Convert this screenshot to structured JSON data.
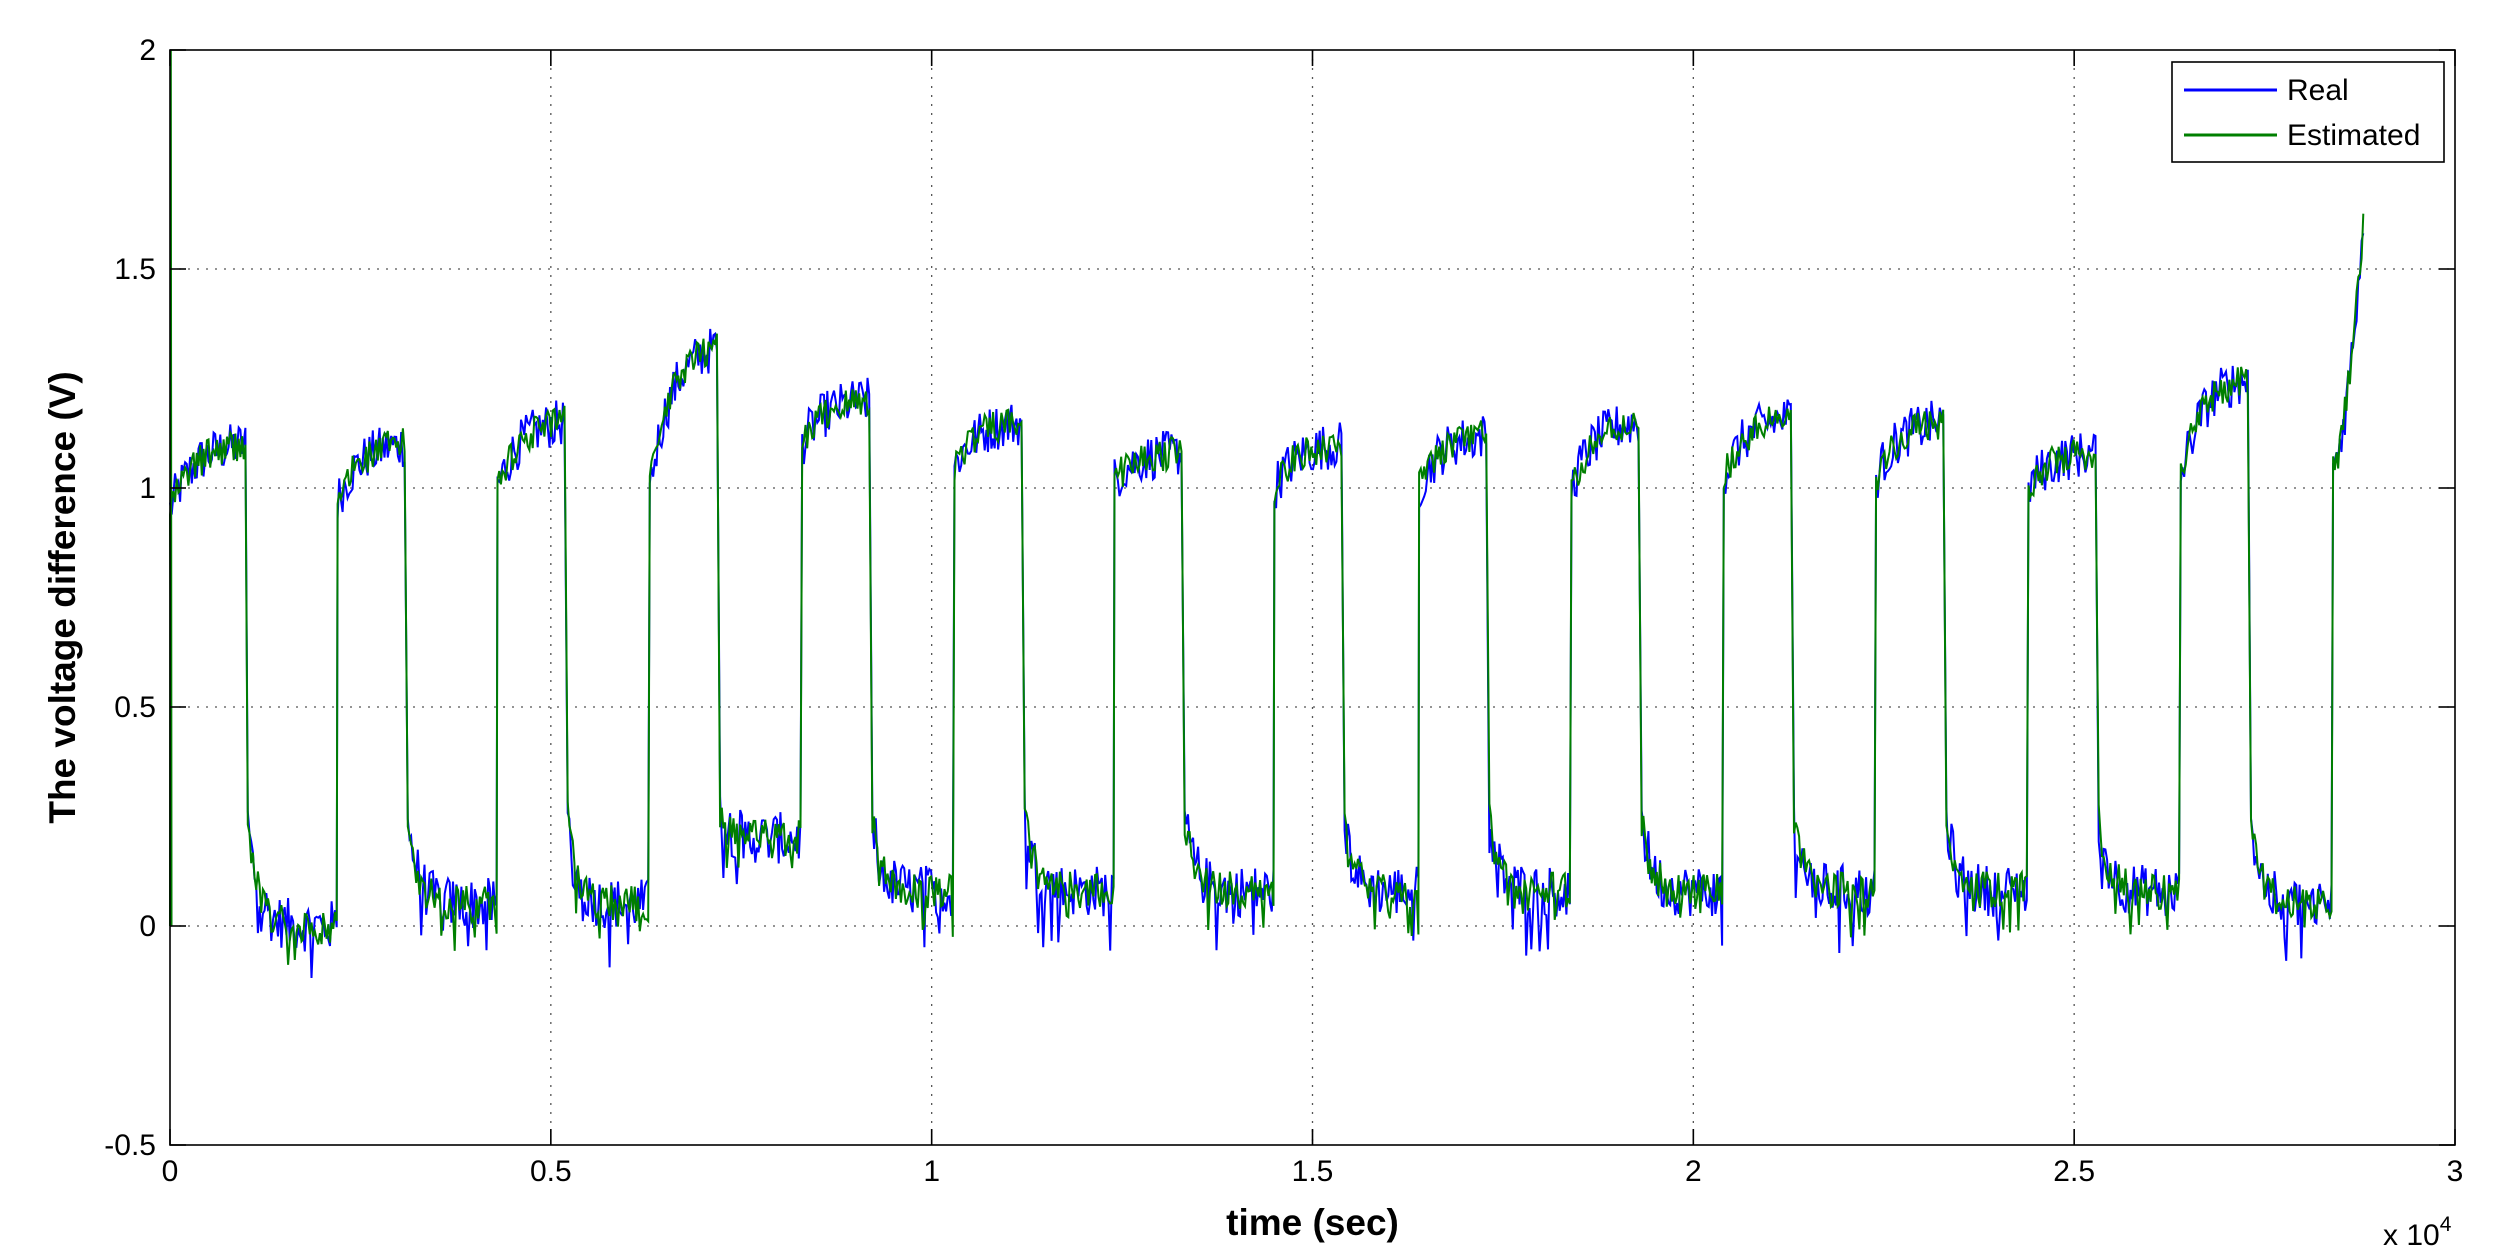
{
  "chart_data": {
    "type": "line",
    "title": "",
    "xlabel": "time (sec)",
    "ylabel": "The voltage difference (V)",
    "x_multiplier_label": "x 10",
    "x_multiplier_exponent": "4",
    "xlim": [
      0,
      30000
    ],
    "ylim": [
      -0.5,
      2
    ],
    "xticks": [
      0,
      5000,
      10000,
      15000,
      20000,
      25000,
      30000
    ],
    "xtick_labels": [
      "0",
      "0.5",
      "1",
      "1.5",
      "2",
      "2.5",
      "3"
    ],
    "yticks": [
      -0.5,
      0,
      0.5,
      1,
      1.5,
      2
    ],
    "ytick_labels": [
      "-0.5",
      "0",
      "0.5",
      "1",
      "1.5",
      "2"
    ],
    "grid": true,
    "legend_position": "top-right",
    "colors": {
      "real": "#0000ff",
      "estimated": "#007f00"
    },
    "charge_cycles": [
      {
        "start": 0,
        "end": 1000,
        "rise_value": 0.95,
        "end_value": 1.1,
        "rest_value": 0.0
      },
      {
        "start": 2200,
        "end": 3100,
        "rise_value": 0.97,
        "end_value": 1.1,
        "rest_value": 0.05
      },
      {
        "start": 4300,
        "end": 5200,
        "rise_value": 1.0,
        "end_value": 1.15,
        "rest_value": 0.05
      },
      {
        "start": 6300,
        "end": 7200,
        "rise_value": 1.0,
        "end_value": 1.32,
        "rest_value": 0.2
      },
      {
        "start": 8300,
        "end": 9200,
        "rise_value": 1.1,
        "end_value": 1.2,
        "rest_value": 0.08
      },
      {
        "start": 10300,
        "end": 11200,
        "rise_value": 1.05,
        "end_value": 1.15,
        "rest_value": 0.08
      },
      {
        "start": 12400,
        "end": 13300,
        "rise_value": 1.02,
        "end_value": 1.08,
        "rest_value": 0.08
      },
      {
        "start": 14500,
        "end": 15400,
        "rise_value": 1.0,
        "end_value": 1.1,
        "rest_value": 0.08
      },
      {
        "start": 16400,
        "end": 17300,
        "rise_value": 1.0,
        "end_value": 1.12,
        "rest_value": 0.08
      },
      {
        "start": 18400,
        "end": 19300,
        "rise_value": 1.0,
        "end_value": 1.15,
        "rest_value": 0.08
      },
      {
        "start": 20400,
        "end": 21300,
        "rise_value": 1.02,
        "end_value": 1.16,
        "rest_value": 0.08
      },
      {
        "start": 22400,
        "end": 23300,
        "rise_value": 1.02,
        "end_value": 1.15,
        "rest_value": 0.08
      },
      {
        "start": 24400,
        "end": 25300,
        "rise_value": 1.0,
        "end_value": 1.08,
        "rest_value": 0.08
      },
      {
        "start": 26400,
        "end": 27300,
        "rise_value": 1.02,
        "end_value": 1.25,
        "rest_value": 0.05
      },
      {
        "start": 28400,
        "end": 28800,
        "rise_value": 1.05,
        "end_value": 1.62,
        "rest_value": null
      }
    ],
    "series": [
      {
        "name": "Real",
        "color": "#0000ff"
      },
      {
        "name": "Estimated",
        "color": "#007f00"
      }
    ]
  }
}
